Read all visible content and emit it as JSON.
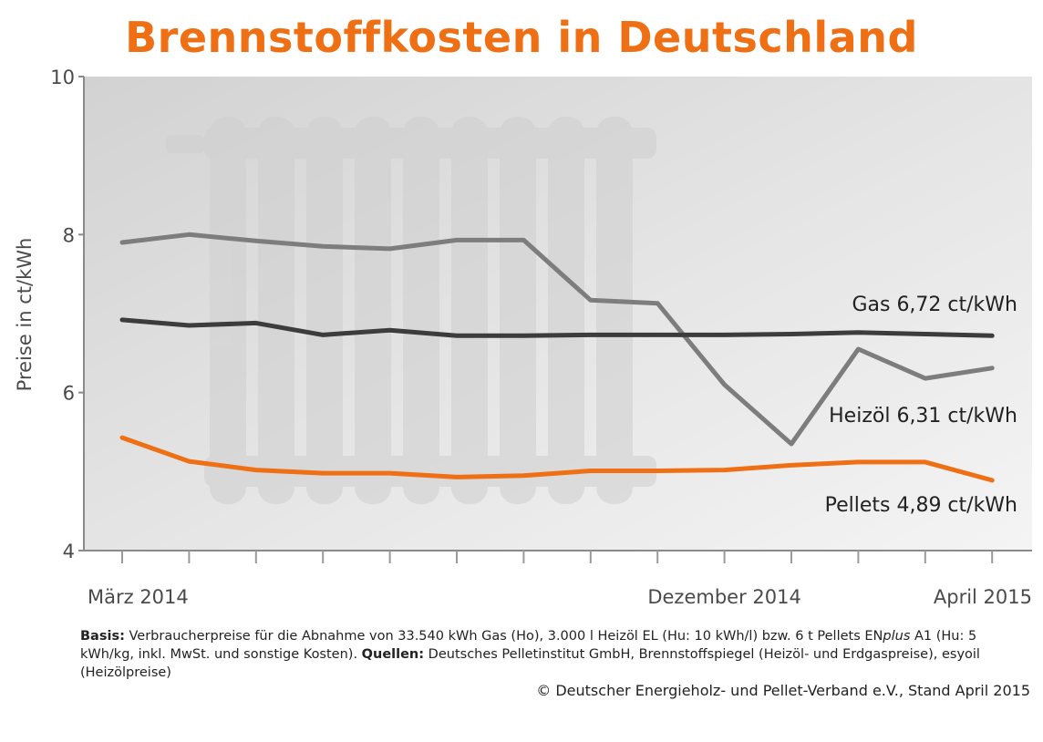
{
  "chart_data": {
    "type": "line",
    "title": "Brennstoffkosten in Deutschland",
    "ylabel": "Preise in ct/kWh",
    "ylim": [
      4,
      10
    ],
    "yticks": [
      4,
      6,
      8,
      10
    ],
    "xtick_labels": [
      {
        "index": 0,
        "label": "März 2014"
      },
      {
        "index": 9,
        "label": "Dezember 2014"
      },
      {
        "index": 13,
        "label": "April 2015"
      }
    ],
    "x_count": 14,
    "series": [
      {
        "key": "heizoel",
        "label": "Heizöl 6,31 ct/kWh",
        "color": "#7d7d7d",
        "values": [
          7.9,
          8.0,
          7.92,
          7.85,
          7.82,
          7.93,
          7.93,
          7.17,
          7.13,
          6.1,
          5.35,
          6.55,
          6.18,
          6.31
        ]
      },
      {
        "key": "gas",
        "label": "Gas 6,72 ct/kWh",
        "color": "#3c3c3c",
        "values": [
          6.92,
          6.85,
          6.88,
          6.73,
          6.79,
          6.72,
          6.72,
          6.73,
          6.73,
          6.73,
          6.74,
          6.76,
          6.74,
          6.72
        ]
      },
      {
        "key": "pellets",
        "label": "Pellets 4,89 ct/kWh",
        "color": "#ee6f14",
        "values": [
          5.43,
          5.13,
          5.02,
          4.98,
          4.98,
          4.93,
          4.95,
          5.01,
          5.01,
          5.02,
          5.08,
          5.12,
          5.12,
          4.89
        ]
      }
    ]
  },
  "footnote": {
    "basis_label": "Basis:",
    "basis_text": " Verbraucherpreise für die Abnahme von 33.540 kWh Gas (Ho), 3.000 l Heizöl EL (Hu: 10 kWh/l) bzw. 6 t Pellets EN",
    "enplus_italic": "plus",
    "basis_text2": " A1 (Hu: 5 kWh/kg, inkl. MwSt. und sonstige Kosten). ",
    "quellen_label": "Quellen:",
    "quellen_text": " Deutsches Pelletinstitut GmbH, Brennstoffspiegel (Heizöl- und Erdgaspreise), esyoil (Heizölpreise)"
  },
  "copyright": "© Deutscher Energieholz- und Pellet-Verband e.V., Stand April 2015"
}
